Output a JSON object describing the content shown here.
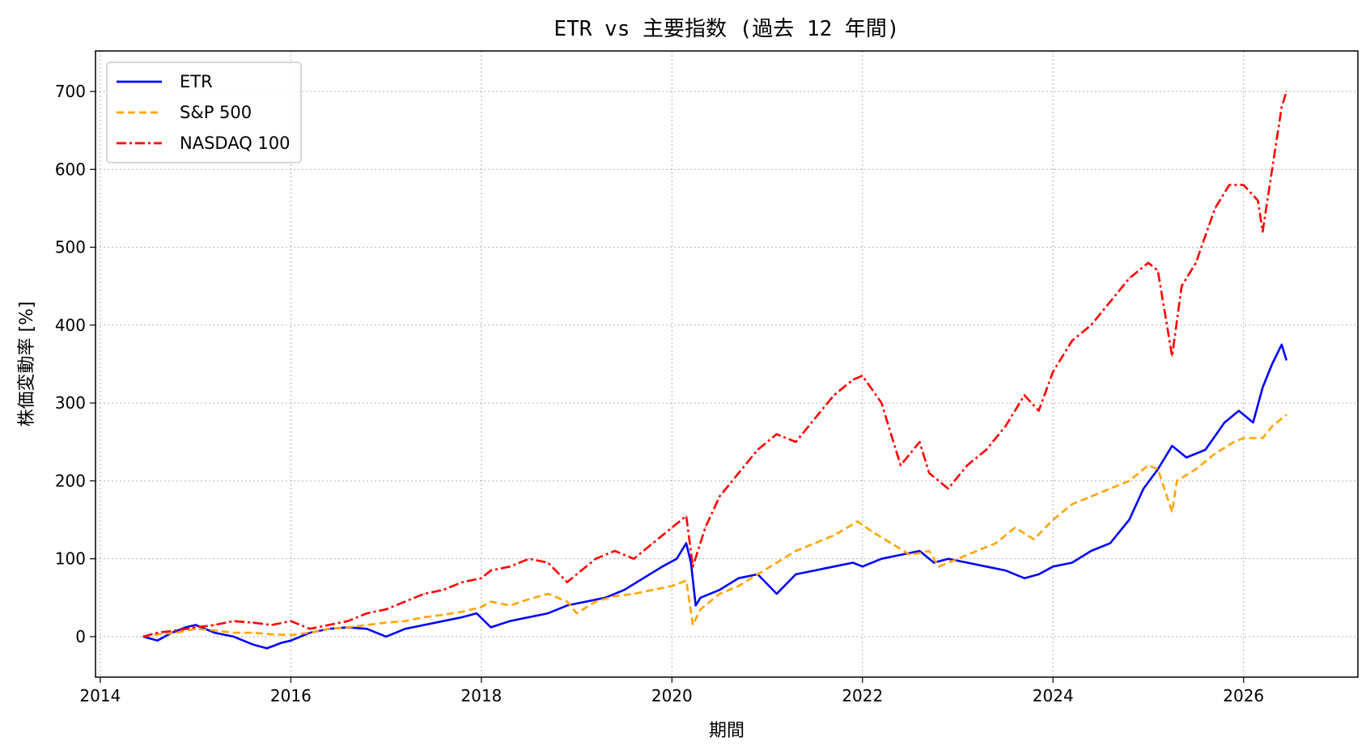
{
  "chart_data": {
    "type": "line",
    "title": "ETR vs 主要指数 (過去 12 年間)",
    "xlabel": "期間",
    "ylabel": "株価変動率 [%]",
    "xlim": [
      2013.95,
      2027.2
    ],
    "ylim": [
      -52,
      752
    ],
    "x_ticks": [
      2014,
      2016,
      2018,
      2020,
      2022,
      2024,
      2026
    ],
    "x_tick_labels": [
      "2014",
      "2016",
      "2018",
      "2020",
      "2022",
      "2024",
      "2026"
    ],
    "y_ticks": [
      0,
      100,
      200,
      300,
      400,
      500,
      600,
      700
    ],
    "y_tick_labels": [
      "0",
      "100",
      "200",
      "300",
      "400",
      "500",
      "600",
      "700"
    ],
    "grid": true,
    "legend_position": "top-left",
    "series": [
      {
        "name": "ETR",
        "color": "#0000ff",
        "style": "solid",
        "x": [
          2014.45,
          2014.6,
          2014.75,
          2014.9,
          2015.0,
          2015.2,
          2015.4,
          2015.6,
          2015.75,
          2015.9,
          2016.0,
          2016.2,
          2016.4,
          2016.6,
          2016.8,
          2017.0,
          2017.2,
          2017.4,
          2017.6,
          2017.8,
          2017.95,
          2018.1,
          2018.3,
          2018.5,
          2018.7,
          2018.9,
          2019.1,
          2019.3,
          2019.5,
          2019.7,
          2019.9,
          2020.05,
          2020.15,
          2020.2,
          2020.25,
          2020.3,
          2020.5,
          2020.7,
          2020.9,
          2021.1,
          2021.3,
          2021.5,
          2021.7,
          2021.9,
          2022.0,
          2022.2,
          2022.4,
          2022.6,
          2022.75,
          2022.9,
          2023.1,
          2023.3,
          2023.5,
          2023.7,
          2023.85,
          2024.0,
          2024.2,
          2024.4,
          2024.6,
          2024.8,
          2024.95,
          2025.1,
          2025.25,
          2025.4,
          2025.6,
          2025.8,
          2025.95,
          2026.1,
          2026.2,
          2026.3,
          2026.4,
          2026.45
        ],
        "y": [
          0,
          -5,
          5,
          12,
          15,
          5,
          0,
          -10,
          -15,
          -8,
          -5,
          5,
          10,
          12,
          10,
          0,
          10,
          15,
          20,
          25,
          30,
          12,
          20,
          25,
          30,
          40,
          45,
          50,
          60,
          75,
          90,
          100,
          120,
          95,
          40,
          50,
          60,
          75,
          80,
          55,
          80,
          85,
          90,
          95,
          90,
          100,
          105,
          110,
          95,
          100,
          95,
          90,
          85,
          75,
          80,
          90,
          95,
          110,
          120,
          150,
          190,
          215,
          245,
          230,
          240,
          275,
          290,
          275,
          320,
          350,
          375,
          355
        ]
      },
      {
        "name": "S&P 500",
        "color": "#ffa500",
        "style": "dashed",
        "x": [
          2014.45,
          2014.6,
          2014.8,
          2015.0,
          2015.2,
          2015.4,
          2015.6,
          2015.8,
          2016.0,
          2016.2,
          2016.4,
          2016.6,
          2016.8,
          2017.0,
          2017.2,
          2017.4,
          2017.6,
          2017.8,
          2018.0,
          2018.1,
          2018.3,
          2018.5,
          2018.7,
          2018.9,
          2019.0,
          2019.2,
          2019.4,
          2019.6,
          2019.8,
          2020.0,
          2020.15,
          2020.22,
          2020.3,
          2020.5,
          2020.7,
          2020.9,
          2021.1,
          2021.3,
          2021.5,
          2021.7,
          2021.95,
          2022.1,
          2022.3,
          2022.5,
          2022.7,
          2022.8,
          2023.0,
          2023.2,
          2023.4,
          2023.6,
          2023.8,
          2024.0,
          2024.2,
          2024.4,
          2024.6,
          2024.8,
          2025.0,
          2025.1,
          2025.25,
          2025.3,
          2025.5,
          2025.7,
          2025.9,
          2026.0,
          2026.2,
          2026.3,
          2026.45
        ],
        "y": [
          0,
          3,
          5,
          10,
          8,
          5,
          5,
          3,
          2,
          5,
          10,
          12,
          15,
          18,
          20,
          25,
          28,
          32,
          38,
          45,
          40,
          48,
          55,
          45,
          30,
          45,
          52,
          55,
          60,
          65,
          72,
          15,
          35,
          55,
          65,
          80,
          95,
          110,
          120,
          130,
          148,
          135,
          120,
          105,
          110,
          90,
          100,
          110,
          120,
          140,
          125,
          150,
          170,
          180,
          190,
          200,
          220,
          215,
          160,
          200,
          215,
          235,
          250,
          255,
          255,
          270,
          285
        ]
      },
      {
        "name": "NASDAQ 100",
        "color": "#ff0000",
        "style": "dashdot",
        "x": [
          2014.45,
          2014.6,
          2014.8,
          2015.0,
          2015.2,
          2015.4,
          2015.6,
          2015.8,
          2016.0,
          2016.2,
          2016.4,
          2016.6,
          2016.8,
          2017.0,
          2017.2,
          2017.4,
          2017.6,
          2017.8,
          2018.0,
          2018.1,
          2018.3,
          2018.5,
          2018.7,
          2018.9,
          2019.0,
          2019.2,
          2019.4,
          2019.6,
          2019.8,
          2020.0,
          2020.15,
          2020.22,
          2020.35,
          2020.5,
          2020.7,
          2020.9,
          2021.1,
          2021.3,
          2021.5,
          2021.7,
          2021.9,
          2022.0,
          2022.2,
          2022.4,
          2022.6,
          2022.7,
          2022.9,
          2023.1,
          2023.3,
          2023.5,
          2023.7,
          2023.85,
          2024.0,
          2024.2,
          2024.4,
          2024.6,
          2024.8,
          2025.0,
          2025.1,
          2025.25,
          2025.35,
          2025.5,
          2025.7,
          2025.85,
          2026.0,
          2026.15,
          2026.2,
          2026.3,
          2026.4,
          2026.45
        ],
        "y": [
          0,
          5,
          8,
          12,
          15,
          20,
          18,
          15,
          20,
          10,
          15,
          20,
          30,
          35,
          45,
          55,
          60,
          70,
          75,
          85,
          90,
          100,
          95,
          70,
          80,
          100,
          110,
          100,
          120,
          140,
          155,
          90,
          140,
          180,
          210,
          240,
          260,
          250,
          280,
          310,
          330,
          335,
          300,
          220,
          250,
          210,
          190,
          220,
          240,
          270,
          310,
          290,
          340,
          380,
          400,
          430,
          460,
          480,
          470,
          360,
          450,
          480,
          550,
          580,
          580,
          560,
          520,
          600,
          680,
          700
        ]
      }
    ]
  }
}
